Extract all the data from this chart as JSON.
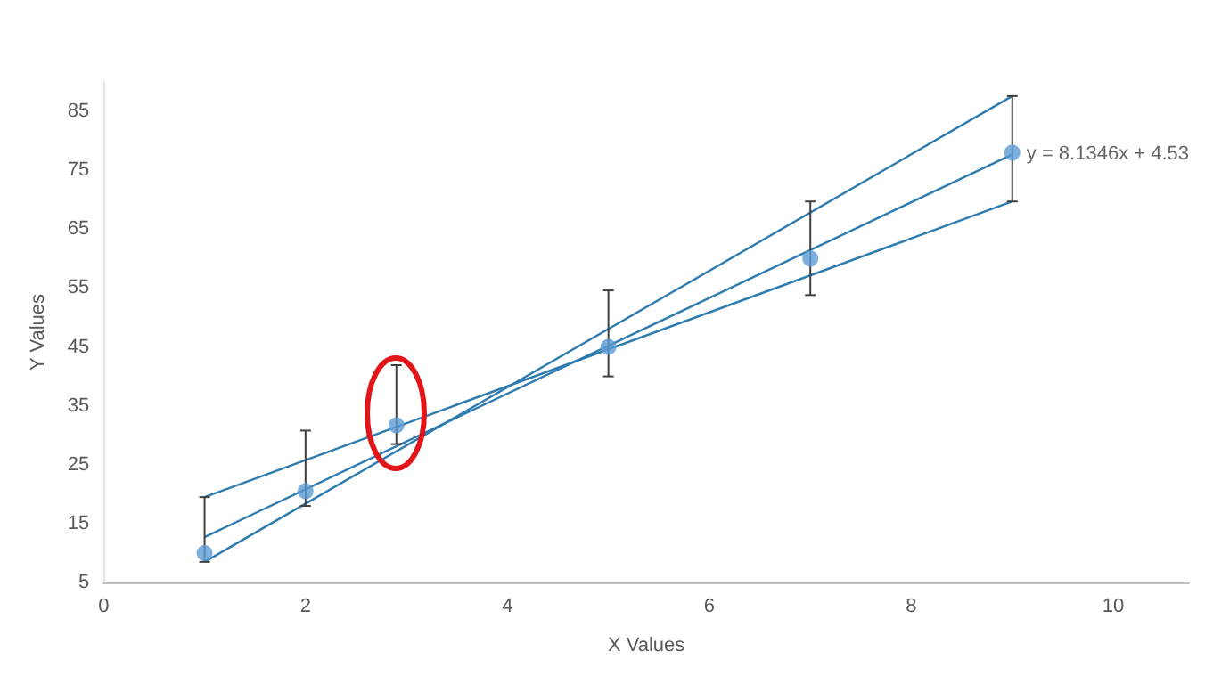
{
  "chart_data": {
    "type": "scatter",
    "xlabel": "X Values",
    "ylabel": "Y Values",
    "xlim": [
      0,
      10.75
    ],
    "xticks": [
      0,
      2,
      4,
      6,
      8,
      10
    ],
    "ylim": [
      5,
      90
    ],
    "yticks": [
      5,
      15,
      25,
      35,
      45,
      55,
      65,
      75,
      85
    ],
    "grid": false,
    "series": [
      {
        "color": "#5b9bd5",
        "marker": "circle",
        "x": [
          1,
          2,
          2.9,
          5,
          7,
          9
        ],
        "values": [
          10,
          20.5,
          31.7,
          45,
          60,
          78
        ],
        "errors": [
          [
            8.5,
            19.5
          ],
          [
            18,
            30.8
          ],
          [
            28.5,
            41.9
          ],
          [
            40,
            54.6
          ],
          [
            53.8,
            69.7
          ],
          [
            69.7,
            87.6
          ]
        ]
      },
      {
        "type": "line",
        "color": "#2e7bb0",
        "x": [
          1,
          9
        ],
        "values": [
          12.7,
          77.7
        ]
      },
      {
        "type": "line",
        "color": "#2e7bb0",
        "x": [
          1,
          9
        ],
        "values": [
          8.5,
          87.6
        ]
      },
      {
        "type": "line",
        "color": "#2e7bb0",
        "x": [
          1,
          9
        ],
        "values": [
          19.5,
          69.7
        ]
      }
    ],
    "annotations": [
      {
        "text": "y = 8.1346x + 4.53",
        "x": 9,
        "y": 77.7
      }
    ]
  }
}
